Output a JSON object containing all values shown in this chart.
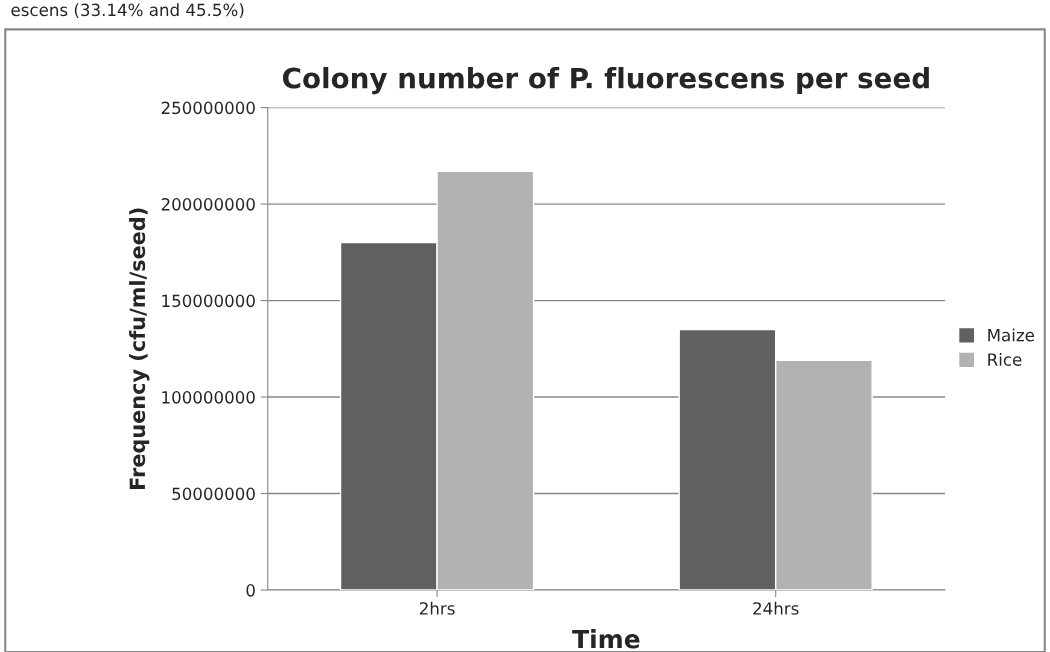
{
  "chart_data": {
    "type": "bar",
    "title": "Colony number of P. fluorescens per seed",
    "xlabel": "Time",
    "ylabel": "Frequency (cfu/ml/seed)",
    "annotations": [
      "escens (33.14% and 45.5%)"
    ],
    "categories": [
      "2hrs",
      "24hrs"
    ],
    "series": [
      {
        "name": "Maize",
        "color": "#606060",
        "values": [
          180000000,
          135000000
        ]
      },
      {
        "name": "Rice",
        "color": "#b2b2b2",
        "values": [
          217000000,
          119000000
        ]
      }
    ],
    "ylim": [
      0,
      250000000
    ],
    "yticks": [
      0,
      50000000,
      100000000,
      150000000,
      200000000,
      250000000
    ],
    "grid": "y",
    "legend": "right"
  }
}
